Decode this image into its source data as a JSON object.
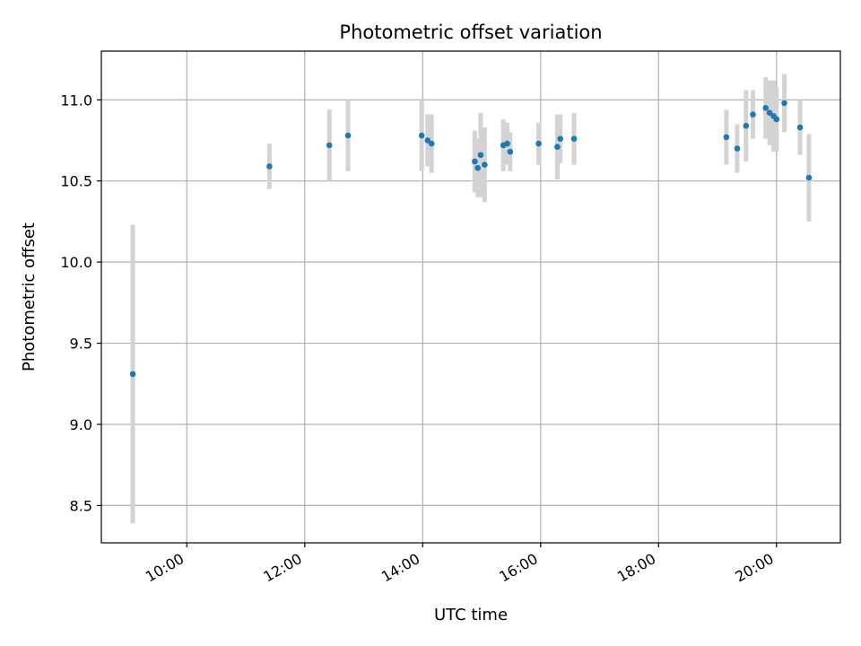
{
  "chart_data": {
    "type": "scatter",
    "title": "Photometric offset variation",
    "xlabel": "UTC time",
    "ylabel": "Photometric offset",
    "x_unit": "UTC hh:mm",
    "xlim": [
      "08:33",
      "21:05"
    ],
    "ylim": [
      8.27,
      11.3
    ],
    "x_ticks": [
      "10:00",
      "12:00",
      "14:00",
      "16:00",
      "18:00",
      "20:00"
    ],
    "y_ticks": [
      8.5,
      9.0,
      9.5,
      10.0,
      10.5,
      11.0
    ],
    "grid": true,
    "legend": "none",
    "marker_color": "#1f77b4",
    "errorbar_color": "#d3d3d3",
    "series": [
      {
        "points": [
          {
            "x": "09:05",
            "y": 9.31,
            "yerr": 0.92
          },
          {
            "x": "11:24",
            "y": 10.59,
            "yerr": 0.14
          },
          {
            "x": "12:25",
            "y": 10.72,
            "yerr": 0.22
          },
          {
            "x": "12:44",
            "y": 10.78,
            "yerr": 0.22
          },
          {
            "x": "13:59",
            "y": 10.78,
            "yerr": 0.22
          },
          {
            "x": "14:05",
            "y": 10.75,
            "yerr": 0.16
          },
          {
            "x": "14:09",
            "y": 10.73,
            "yerr": 0.18
          },
          {
            "x": "14:53",
            "y": 10.62,
            "yerr": 0.19
          },
          {
            "x": "14:56",
            "y": 10.58,
            "yerr": 0.18
          },
          {
            "x": "14:59",
            "y": 10.66,
            "yerr": 0.26
          },
          {
            "x": "15:03",
            "y": 10.6,
            "yerr": 0.23
          },
          {
            "x": "15:22",
            "y": 10.72,
            "yerr": 0.16
          },
          {
            "x": "15:26",
            "y": 10.73,
            "yerr": 0.13
          },
          {
            "x": "15:29",
            "y": 10.68,
            "yerr": 0.12
          },
          {
            "x": "15:58",
            "y": 10.73,
            "yerr": 0.13
          },
          {
            "x": "16:17",
            "y": 10.71,
            "yerr": 0.2
          },
          {
            "x": "16:20",
            "y": 10.76,
            "yerr": 0.15
          },
          {
            "x": "16:34",
            "y": 10.76,
            "yerr": 0.16
          },
          {
            "x": "19:09",
            "y": 10.77,
            "yerr": 0.17
          },
          {
            "x": "19:20",
            "y": 10.7,
            "yerr": 0.15
          },
          {
            "x": "19:29",
            "y": 10.84,
            "yerr": 0.22
          },
          {
            "x": "19:36",
            "y": 10.91,
            "yerr": 0.15
          },
          {
            "x": "19:49",
            "y": 10.95,
            "yerr": 0.19
          },
          {
            "x": "19:53",
            "y": 10.92,
            "yerr": 0.2
          },
          {
            "x": "19:57",
            "y": 10.9,
            "yerr": 0.22
          },
          {
            "x": "20:00",
            "y": 10.88,
            "yerr": 0.2
          },
          {
            "x": "20:08",
            "y": 10.98,
            "yerr": 0.18
          },
          {
            "x": "20:24",
            "y": 10.83,
            "yerr": 0.17
          },
          {
            "x": "20:33",
            "y": 10.52,
            "yerr": 0.27
          }
        ]
      }
    ]
  }
}
